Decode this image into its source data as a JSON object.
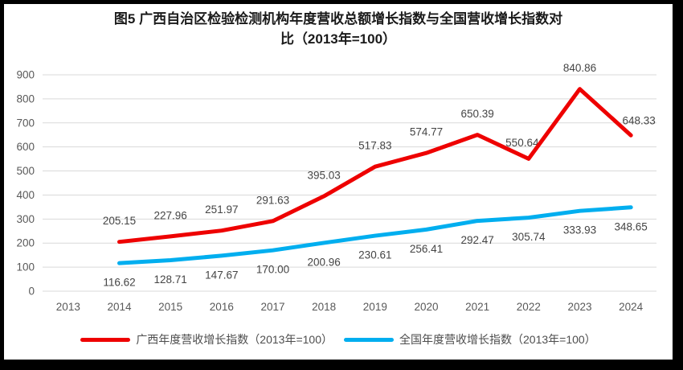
{
  "title": {
    "line1": "图5  广西自治区检验检测机构年度营收总额增长指数与全国营收增长指数对",
    "line2": "比（2013年=100）"
  },
  "colors": {
    "guangxi_red": "#EE0000",
    "national_blue": "#00AEEF",
    "gridline": "#D9D9D9",
    "axis_text": "#595959",
    "data_label_text": "#444444",
    "frame_border": "#000000",
    "background": "#FFFFFF"
  },
  "chart_data": {
    "type": "line",
    "title": "图5 广西自治区检验检测机构年度营收总额增长指数与全国营收增长指数对比（2013年=100）",
    "categories": [
      "2013",
      "2014",
      "2015",
      "2016",
      "2017",
      "2018",
      "2019",
      "2020",
      "2021",
      "2022",
      "2023",
      "2024"
    ],
    "series": [
      {
        "name": "广西年度营收增长指数（2013年=100）",
        "color": "#EE0000",
        "values": [
          null,
          205.15,
          227.96,
          251.97,
          291.63,
          395.03,
          517.83,
          574.77,
          650.39,
          550.64,
          840.86,
          648.33
        ],
        "labels": [
          "",
          "205.15",
          "227.96",
          "251.97",
          "291.63",
          "395.03",
          "517.83",
          "574.77",
          "650.39",
          "550.64",
          "840.86",
          "648.33"
        ],
        "label_position": "above",
        "label_offsets": {
          "9": [
            -8,
            6
          ],
          "11": [
            10,
            8
          ]
        }
      },
      {
        "name": "全国年度营收增长指数（2013年=100）",
        "color": "#00AEEF",
        "values": [
          null,
          116.62,
          128.71,
          147.67,
          170.0,
          200.96,
          230.61,
          256.41,
          292.47,
          305.74,
          333.93,
          348.65
        ],
        "labels": [
          "",
          "116.62",
          "128.71",
          "147.67",
          "170.00",
          "200.96",
          "230.61",
          "256.41",
          "292.47",
          "305.74",
          "333.93",
          "348.65"
        ],
        "label_position": "below",
        "label_offsets": {}
      }
    ],
    "y_ticks": [
      0,
      100,
      200,
      300,
      400,
      500,
      600,
      700,
      800,
      900
    ],
    "ylim": [
      0,
      900
    ],
    "xlabel": "",
    "ylabel": "",
    "grid": "horizontal",
    "legend_position": "bottom"
  }
}
